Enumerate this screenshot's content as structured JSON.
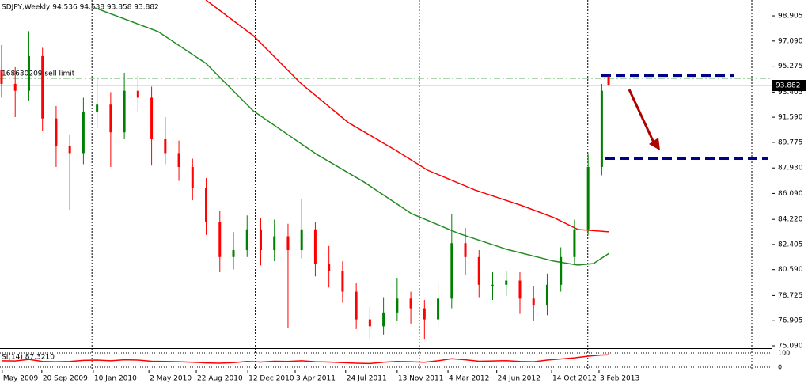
{
  "chart_data": [
    {
      "type": "candlestick",
      "title": "SDJPY,Weekly  94.536 94.538 93.858 93.882",
      "x": [
        0,
        4,
        8,
        12,
        16,
        20,
        24,
        28,
        32,
        36,
        40,
        44,
        48,
        52,
        56,
        60,
        64,
        68,
        72,
        76,
        80,
        84,
        88,
        92,
        96,
        100,
        104,
        108,
        112,
        116,
        120,
        124,
        128,
        132,
        136,
        140,
        144,
        148,
        152,
        156,
        160,
        164,
        168,
        172,
        176,
        178
      ],
      "open": [
        95.0,
        94.0,
        93.5,
        96.0,
        91.5,
        89.5,
        89.0,
        92.0,
        92.5,
        90.5,
        93.5,
        93.0,
        90.0,
        89.0,
        88.0,
        86.5,
        84.0,
        81.5,
        82.0,
        83.5,
        82.0,
        83.0,
        82.0,
        83.5,
        81.0,
        80.5,
        79.0,
        77.0,
        76.5,
        77.5,
        78.5,
        77.8,
        77.0,
        78.5,
        82.5,
        81.5,
        79.5,
        79.5,
        79.8,
        78.5,
        78.0,
        79.5,
        81.5,
        83.5,
        88.0,
        94.536
      ],
      "high": [
        96.8,
        95.2,
        97.8,
        96.6,
        92.4,
        90.3,
        93.0,
        94.5,
        93.4,
        94.8,
        94.6,
        93.8,
        91.6,
        89.9,
        88.6,
        87.2,
        84.8,
        83.3,
        84.5,
        84.3,
        84.2,
        83.9,
        85.7,
        84.0,
        82.3,
        81.2,
        79.6,
        77.9,
        78.6,
        80.0,
        79.0,
        78.4,
        79.6,
        84.6,
        83.6,
        82.0,
        80.4,
        80.5,
        80.4,
        79.4,
        80.3,
        82.2,
        84.2,
        88.9,
        94.0,
        94.538
      ],
      "low": [
        93.0,
        91.6,
        92.8,
        90.6,
        88.0,
        84.9,
        88.2,
        90.8,
        88.0,
        90.0,
        92.0,
        88.1,
        88.2,
        87.0,
        85.6,
        83.1,
        80.4,
        80.6,
        81.5,
        80.9,
        81.2,
        76.4,
        81.4,
        80.1,
        79.3,
        78.2,
        76.3,
        75.6,
        75.9,
        76.9,
        76.7,
        75.6,
        76.5,
        77.8,
        80.2,
        78.6,
        78.4,
        78.7,
        77.4,
        76.9,
        77.3,
        79.0,
        80.9,
        83.1,
        87.4,
        93.858
      ],
      "close": [
        94.0,
        93.5,
        96.0,
        91.5,
        89.5,
        89.0,
        92.0,
        92.5,
        90.5,
        93.5,
        93.0,
        90.0,
        89.0,
        88.0,
        86.5,
        84.0,
        81.5,
        82.0,
        83.5,
        82.0,
        83.0,
        82.0,
        83.5,
        81.0,
        80.5,
        79.0,
        77.0,
        76.5,
        77.5,
        78.5,
        77.8,
        77.0,
        78.5,
        82.5,
        81.5,
        79.5,
        79.5,
        79.8,
        78.5,
        78.0,
        79.5,
        81.5,
        83.5,
        88.0,
        93.5,
        93.882
      ],
      "up_color": "#008000",
      "down_color": "#ff0000",
      "series": [
        {
          "color": "#ff0000",
          "x": [
            59.9,
            73.8,
            87.7,
            101.7,
            115.6,
            124.9,
            138.8,
            152.7,
            162.0,
            169.0,
            178.2
          ],
          "values": [
            100.05,
            97.48,
            94.05,
            91.2,
            89.2,
            87.77,
            86.34,
            85.2,
            84.34,
            83.49,
            83.32
          ]
        },
        {
          "color": "#228b22",
          "x": [
            27.4,
            45.9,
            59.9,
            73.8,
            92.4,
            106.3,
            120.2,
            134.1,
            148.1,
            162.0,
            169.0,
            173.6,
            178.2
          ],
          "values": [
            99.48,
            97.77,
            95.48,
            92.05,
            88.91,
            86.91,
            84.63,
            83.2,
            82.06,
            81.2,
            80.92,
            81.03,
            81.78
          ]
        }
      ],
      "levels": [
        94.62,
        88.63
      ],
      "level_color": "#00008b",
      "order": {
        "label": "168630209 sell limit",
        "value": 94.4
      },
      "price": 93.882,
      "xlim": [
        -0.46,
        225.8
      ],
      "ylim": [
        74.92,
        100.05
      ],
      "yticks": [
        98.905,
        {
          "value": 97.09,
          "label": "97.090"
        },
        95.275,
        93.405,
        {
          "value": 91.59,
          "label": "91.590"
        },
        89.775,
        {
          "value": 87.93,
          "label": "87.930"
        },
        {
          "value": 86.09,
          "label": "86.090"
        },
        {
          "value": 84.22,
          "label": "84.220"
        },
        82.405,
        {
          "value": 80.59,
          "label": "80.590"
        },
        78.725,
        76.905,
        {
          "value": 75.09,
          "label": "75.090"
        }
      ],
      "xticks": [
        {
          "value": 0.2,
          "label": "May 2009"
        },
        {
          "value": 11.8,
          "label": "20 Sep 2009"
        },
        {
          "value": 26.9,
          "label": "10 Jan 2010"
        },
        {
          "value": 43.2,
          "label": "2 May 2010"
        },
        {
          "value": 57.1,
          "label": "22 Aug 2010"
        },
        {
          "value": 72.2,
          "label": "12 Dec 2010"
        },
        {
          "value": 86.1,
          "label": "3 Apr 2011"
        },
        {
          "value": 100.9,
          "label": "24 Jul 2011"
        },
        {
          "value": 116,
          "label": "13 Nov 2011"
        },
        {
          "value": 130.9,
          "label": "4 Mar 2012"
        },
        {
          "value": 145.2,
          "label": "24 Jun 2012"
        },
        {
          "value": 161.3,
          "label": "14 Oct 2012"
        },
        {
          "value": 175.2,
          "label": "3 Feb 2013"
        }
      ],
      "xgrid": [
        26.5,
        74.4,
        122.5,
        171.9,
        220
      ]
    },
    {
      "type": "line",
      "title": "SI(14) 87.3210",
      "x": [
        0,
        4,
        8,
        12,
        16,
        20,
        24,
        28,
        32,
        36,
        40,
        44,
        48,
        52,
        56,
        60,
        64,
        68,
        72,
        76,
        80,
        84,
        88,
        92,
        96,
        100,
        104,
        108,
        112,
        116,
        120,
        124,
        128,
        132,
        136,
        140,
        144,
        148,
        152,
        156,
        160,
        164,
        168,
        172,
        176,
        178
      ],
      "values": [
        45,
        44,
        55,
        40,
        38,
        40,
        48,
        50,
        45,
        52,
        50,
        42,
        40,
        38,
        35,
        30,
        28,
        32,
        40,
        36,
        42,
        40,
        45,
        38,
        36,
        32,
        28,
        26,
        35,
        40,
        38,
        35,
        45,
        60,
        52,
        42,
        44,
        46,
        40,
        38,
        50,
        58,
        66,
        78,
        86,
        87.321
      ],
      "color": "#ff0000",
      "xlim": [
        -0.46,
        225.8
      ],
      "ylim": [
        0,
        100
      ],
      "yticks": [
        100,
        0
      ]
    }
  ]
}
